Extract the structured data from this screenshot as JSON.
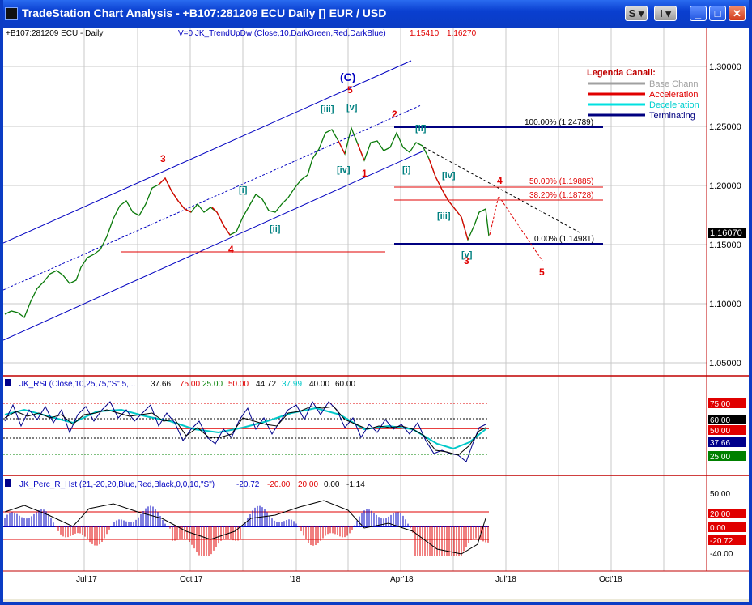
{
  "window": {
    "title": "TradeStation Chart Analysis - +B107:281209 ECU Daily [] EUR / USD",
    "buttons": {
      "s_label": "S",
      "i_label": "I",
      "min_label": "_",
      "max_label": "□",
      "close_label": "✕"
    }
  },
  "price_panel": {
    "symbol_label": "+B107:281209 ECU - Daily",
    "indicator_label": "V=0  JK_TrendUpDw (Close,10,DarkGreen,Red,DarkBlue)",
    "indicator_val1": "1.15410",
    "indicator_val2": "1.16270",
    "price_ticks": [
      "1.30000",
      "1.25000",
      "1.20000",
      "1.15000",
      "1.10000",
      "1.05000"
    ],
    "last_price": "1.16070",
    "legend": {
      "title": "Legenda Canali:",
      "items": [
        {
          "label": "Base Chann",
          "color": "#a0a0a0"
        },
        {
          "label": "Acceleration",
          "color": "#e00000"
        },
        {
          "label": "Deceleration",
          "color": "#00e0e0"
        },
        {
          "label": "Terminating",
          "color": "#000080"
        }
      ]
    },
    "fib_levels": [
      {
        "label": "100.00% (1.24789)",
        "color": "#000000"
      },
      {
        "label": "50.00% (1.19885)",
        "color": "#e00000"
      },
      {
        "label": "38.20% (1.18728)",
        "color": "#e00000"
      },
      {
        "label": "0.00% (1.14981)",
        "color": "#000000"
      }
    ],
    "wave_labels": {
      "C": "(C)",
      "five_top": "5",
      "iii_top": "[iii]",
      "v_top": "[v]",
      "iv_top": "[iv]",
      "one": "1",
      "two": "2",
      "three_left": "3",
      "four_left": "4",
      "i_left": "[i]",
      "ii_left": "[ii]",
      "ii_right": "[ii]",
      "i_right": "[i]",
      "iv_right": "[iv]",
      "iii_right": "[iii]",
      "v_right": "[v]",
      "three_right": "3",
      "four_right": "4",
      "five_right": "5"
    }
  },
  "rsi_panel": {
    "label": "JK_RSI (Close,10,25,75,\"S\",5,...",
    "values": [
      "37.66",
      "75.00",
      "25.00",
      "50.00",
      "44.72",
      "37.99",
      "40.00",
      "60.00"
    ],
    "ticks": [
      "75.00",
      "60.00",
      "50.00",
      "37.66",
      "25.00"
    ]
  },
  "perc_panel": {
    "label": "JK_Perc_R_Hst (21,-20,20,Blue,Red,Black,0,0,10,\"S\")",
    "values": [
      "-20.72",
      "-20.00",
      "20.00",
      "0.00",
      "-1.14"
    ],
    "ticks": [
      "50.00",
      "20.00",
      "0.00",
      "-20.72",
      "-40.00"
    ]
  },
  "x_axis": [
    "Jul'17",
    "Oct'17",
    "'18",
    "Apr'18",
    "Jul'18",
    "Oct'18"
  ]
}
